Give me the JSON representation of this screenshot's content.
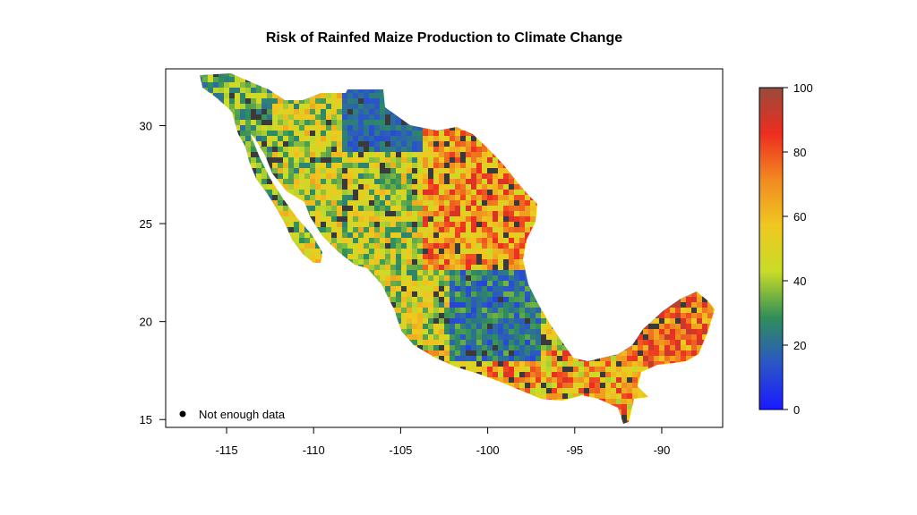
{
  "title": "Risk of Rainfed Maize Production to Climate Change",
  "map": {
    "x_axis": {
      "ticks": [
        -115,
        -110,
        -105,
        -100,
        -95,
        -90
      ],
      "range": [
        -118.5,
        -86.5
      ]
    },
    "y_axis": {
      "ticks": [
        15,
        20,
        25,
        30
      ],
      "range": [
        14.6,
        32.9
      ]
    },
    "legend_note": "Not enough data",
    "no_data_color": "#3a3a3a"
  },
  "colorbar": {
    "min": 0,
    "max": 100,
    "ticks": [
      0,
      20,
      40,
      60,
      80,
      100
    ],
    "colors": [
      "#1a1aff",
      "#2b55c8",
      "#2f8f5a",
      "#c8dc28",
      "#f0c820",
      "#f08a20",
      "#ee2d20",
      "#9a4a3a"
    ]
  }
}
